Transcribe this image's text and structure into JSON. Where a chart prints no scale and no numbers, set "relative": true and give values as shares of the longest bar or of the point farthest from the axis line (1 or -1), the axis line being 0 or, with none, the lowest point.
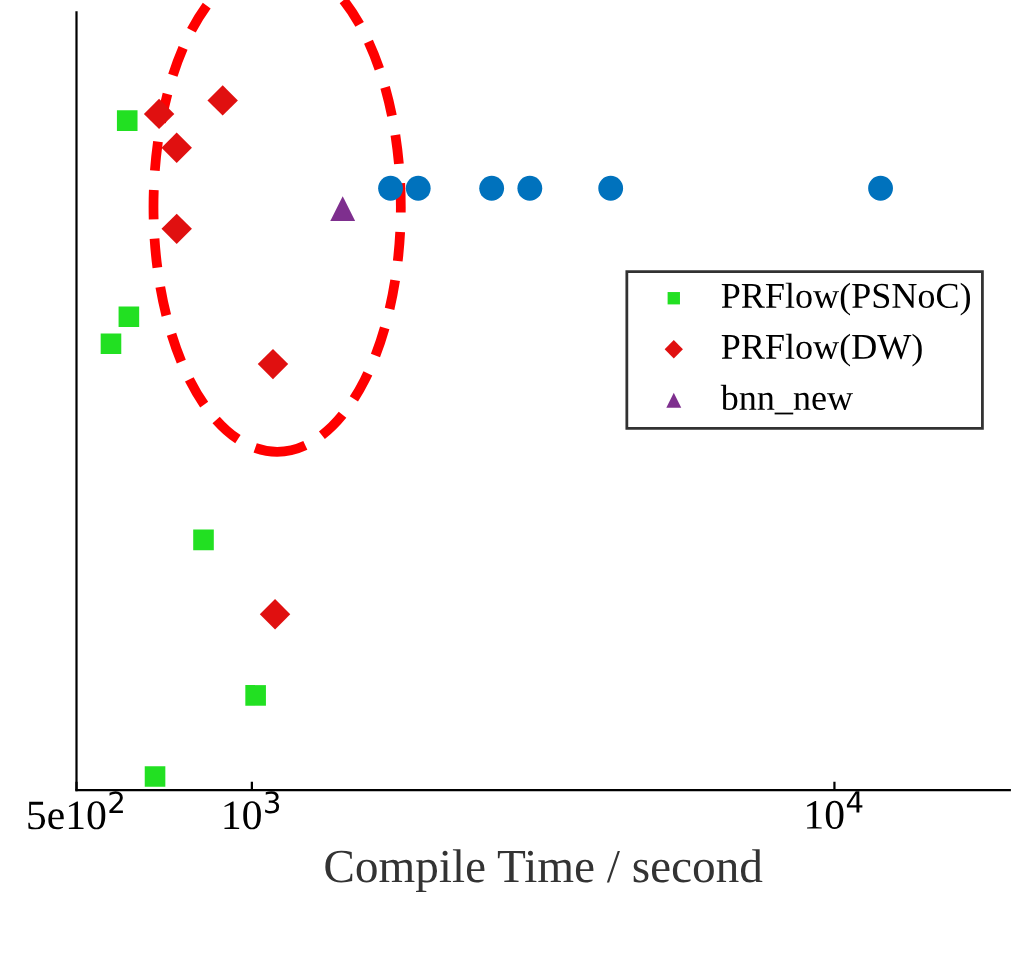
{
  "chart_data": {
    "type": "scatter",
    "relative": true,
    "log": "x",
    "xlabel": "Compile Time / second",
    "xlim": [
      500,
      20000
    ],
    "xticks": [
      {
        "value": 500,
        "label": "5e10$^{2}$"
      },
      {
        "value": 1000,
        "label": "10$^{3}$"
      },
      {
        "value": 10000,
        "label": "10$^{4}$"
      }
    ],
    "legend": "right",
    "grid": false,
    "series": [
      {
        "color": "#0072bd",
        "marker": "circle",
        "x": [
          1730,
          1930,
          2580,
          3000,
          4130,
          12000
        ],
        "values": [
          0.87,
          0.87,
          0.87,
          0.87,
          0.87,
          0.87
        ]
      },
      {
        "name": "PRFlow(PSNoC)",
        "color": "#22e022",
        "marker": "square",
        "x": [
          611,
          615,
          573,
          826,
          1015,
          682
        ],
        "values": [
          0.97,
          0.68,
          0.64,
          0.35,
          0.12,
          0
        ]
      },
      {
        "name": "PRFlow(DW)",
        "color": "#e01010",
        "marker": "diamond",
        "x": [
          693,
          891,
          743,
          743,
          1087,
          1096
        ],
        "values": [
          0.98,
          1.0,
          0.93,
          0.81,
          0.61,
          0.24
        ]
      },
      {
        "name": "bnn_new",
        "color": "#7e2f8e",
        "marker": "triangle",
        "x": [
          1432
        ],
        "values": [
          0.84
        ]
      }
    ]
  }
}
